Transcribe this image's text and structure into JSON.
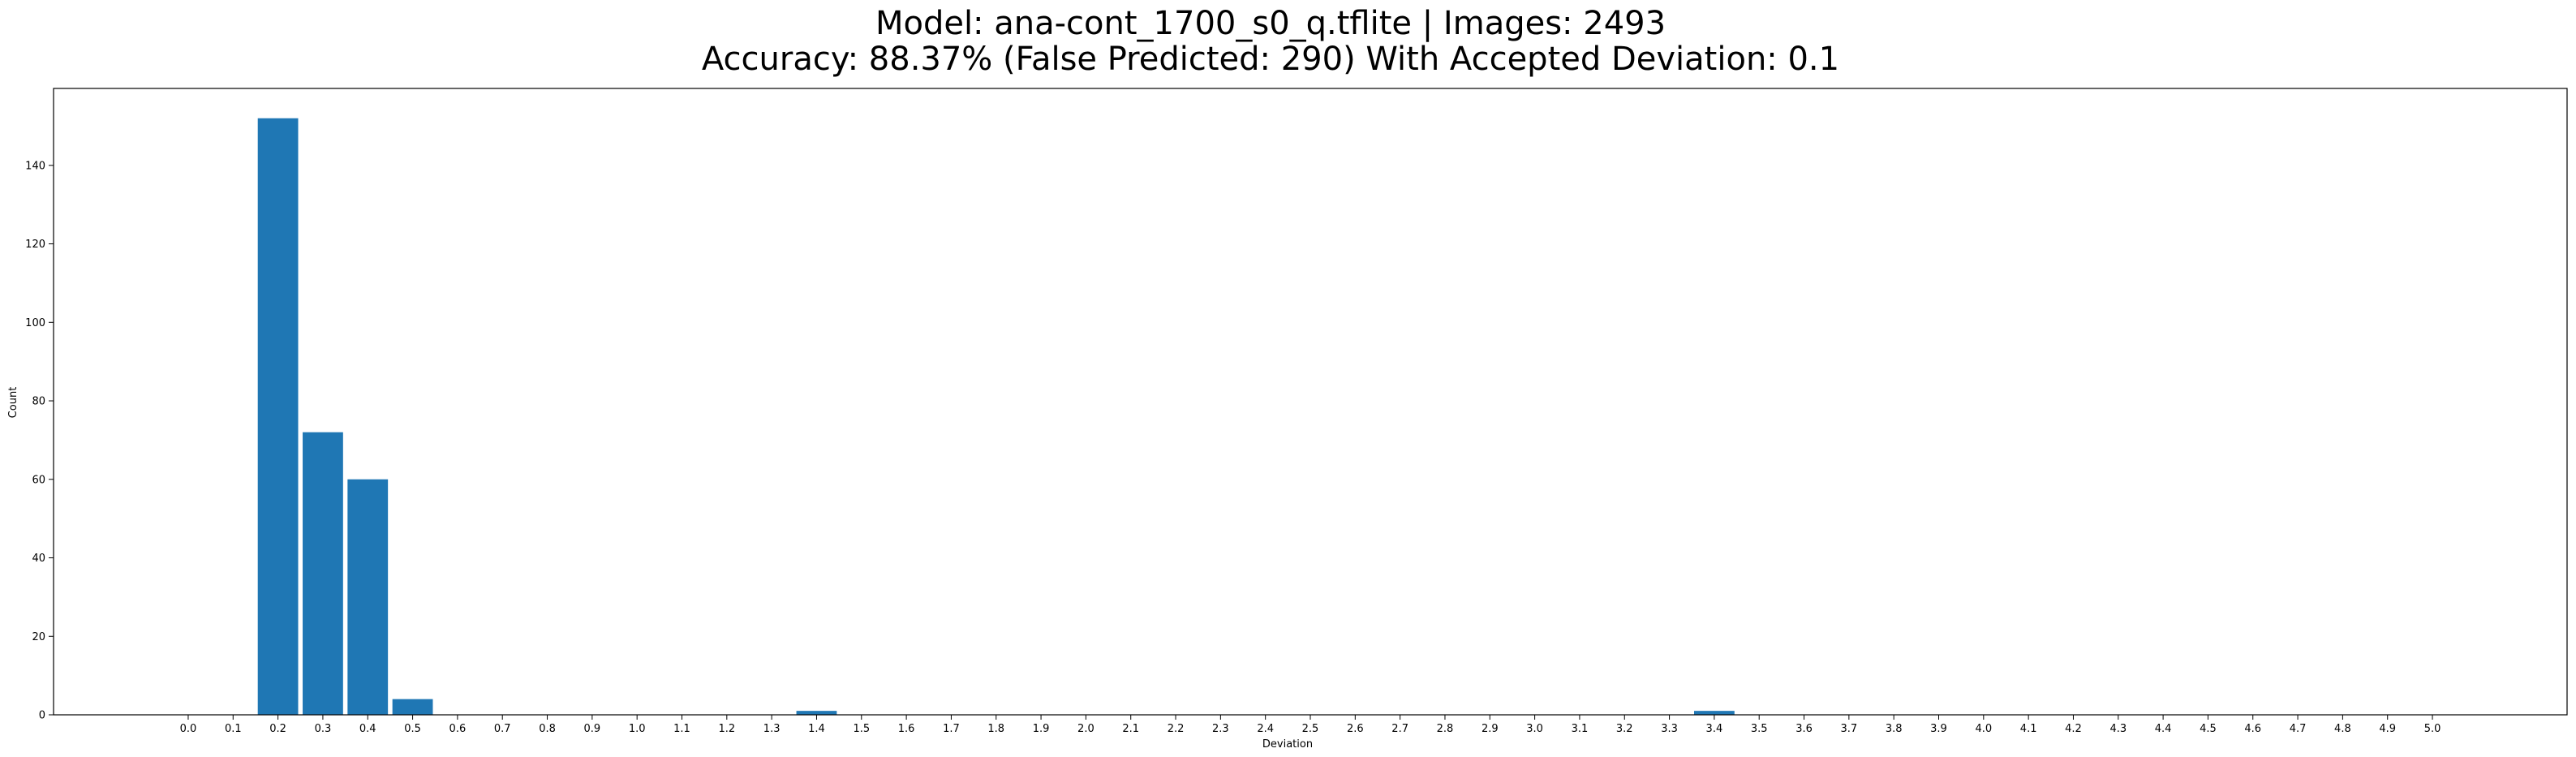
{
  "chart_data": {
    "type": "bar",
    "title_lines": [
      "Model: ana-cont_1700_s0_q.tflite  |  Images: 2493",
      "Accuracy: 88.37% (False Predicted: 290) With Accepted Deviation: 0.1"
    ],
    "xlabel": "Deviation",
    "ylabel": "Count",
    "categories": [
      "0.0",
      "0.1",
      "0.2",
      "0.3",
      "0.4",
      "0.5",
      "0.6",
      "0.7",
      "0.8",
      "0.9",
      "1.0",
      "1.1",
      "1.2",
      "1.3",
      "1.4",
      "1.5",
      "1.6",
      "1.7",
      "1.8",
      "1.9",
      "2.0",
      "2.1",
      "2.2",
      "2.3",
      "2.4",
      "2.5",
      "2.6",
      "2.7",
      "2.8",
      "2.9",
      "3.0",
      "3.1",
      "3.2",
      "3.3",
      "3.4",
      "3.5",
      "3.6",
      "3.7",
      "3.8",
      "3.9",
      "4.0",
      "4.1",
      "4.2",
      "4.3",
      "4.4",
      "4.5",
      "4.6",
      "4.7",
      "4.8",
      "4.9",
      "5.0"
    ],
    "bars": [
      {
        "x": 0.2,
        "value": 152
      },
      {
        "x": 0.3,
        "value": 72
      },
      {
        "x": 0.4,
        "value": 60
      },
      {
        "x": 0.5,
        "value": 4
      },
      {
        "x": 1.4,
        "value": 1
      },
      {
        "x": 3.4,
        "value": 1
      }
    ],
    "yticks": [
      0,
      20,
      40,
      60,
      80,
      100,
      120,
      140
    ],
    "ylim": [
      0,
      159.6
    ],
    "xlim": [
      -0.3,
      5.3
    ],
    "bar_width": 0.09,
    "bar_color": "#1f77b4",
    "grid": false
  }
}
